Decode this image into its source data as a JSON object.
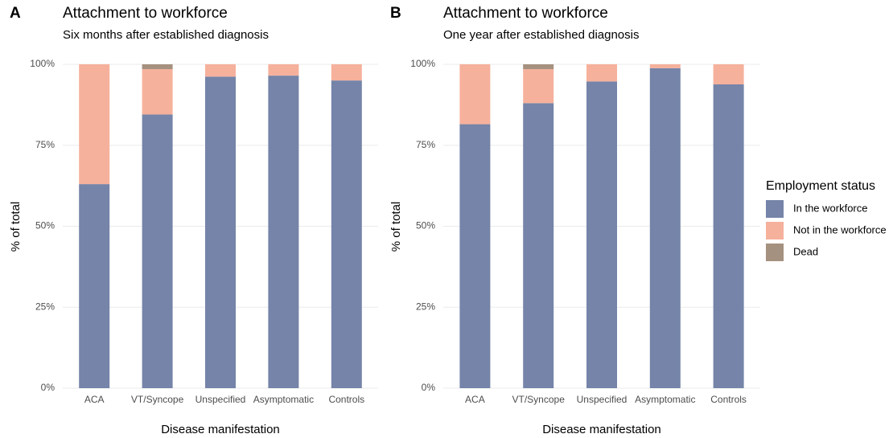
{
  "chart_data": [
    {
      "type": "bar",
      "stacked": true,
      "panel_label": "A",
      "title": "Attachment to workforce",
      "subtitle": "Six months after established diagnosis",
      "x_label": "Disease manifestation",
      "y_label": "% of total",
      "categories": [
        "ACA",
        "VT/Syncope",
        "Unspecified",
        "Asymptomatic",
        "Controls"
      ],
      "series": [
        {
          "name": "In the workforce",
          "color": "#7584a8",
          "values": [
            63,
            84.5,
            96.2,
            96.5,
            95
          ]
        },
        {
          "name": "Not in the workforce",
          "color": "#f6b19c",
          "values": [
            37,
            14,
            3.8,
            3.5,
            5
          ]
        },
        {
          "name": "Dead",
          "color": "#a5917f",
          "values": [
            0,
            1.5,
            0,
            0,
            0
          ]
        }
      ],
      "ylim": [
        0,
        100
      ],
      "yticks": [
        {
          "value": 0,
          "label": "0%"
        },
        {
          "value": 25,
          "label": "25%"
        },
        {
          "value": 50,
          "label": "50%"
        },
        {
          "value": 75,
          "label": "75%"
        },
        {
          "value": 100,
          "label": "100%"
        }
      ],
      "grid": true
    },
    {
      "type": "bar",
      "stacked": true,
      "panel_label": "B",
      "title": "Attachment to workforce",
      "subtitle": "One year after established diagnosis",
      "x_label": "Disease manifestation",
      "y_label": "% of total",
      "legend_title": "Employment status",
      "categories": [
        "ACA",
        "VT/Syncope",
        "Unspecified",
        "Asymptomatic",
        "Controls"
      ],
      "series": [
        {
          "name": "In the workforce",
          "color": "#7584a8",
          "values": [
            81.5,
            88,
            94.7,
            98.8,
            93.8
          ]
        },
        {
          "name": "Not in the workforce",
          "color": "#f6b19c",
          "values": [
            18.5,
            10.5,
            5.3,
            1.2,
            6.2
          ]
        },
        {
          "name": "Dead",
          "color": "#a5917f",
          "values": [
            0,
            1.5,
            0,
            0,
            0
          ]
        }
      ],
      "ylim": [
        0,
        100
      ],
      "yticks": [
        {
          "value": 0,
          "label": "0%"
        },
        {
          "value": 25,
          "label": "25%"
        },
        {
          "value": 50,
          "label": "50%"
        },
        {
          "value": 75,
          "label": "75%"
        },
        {
          "value": 100,
          "label": "100%"
        }
      ],
      "grid": true
    }
  ]
}
